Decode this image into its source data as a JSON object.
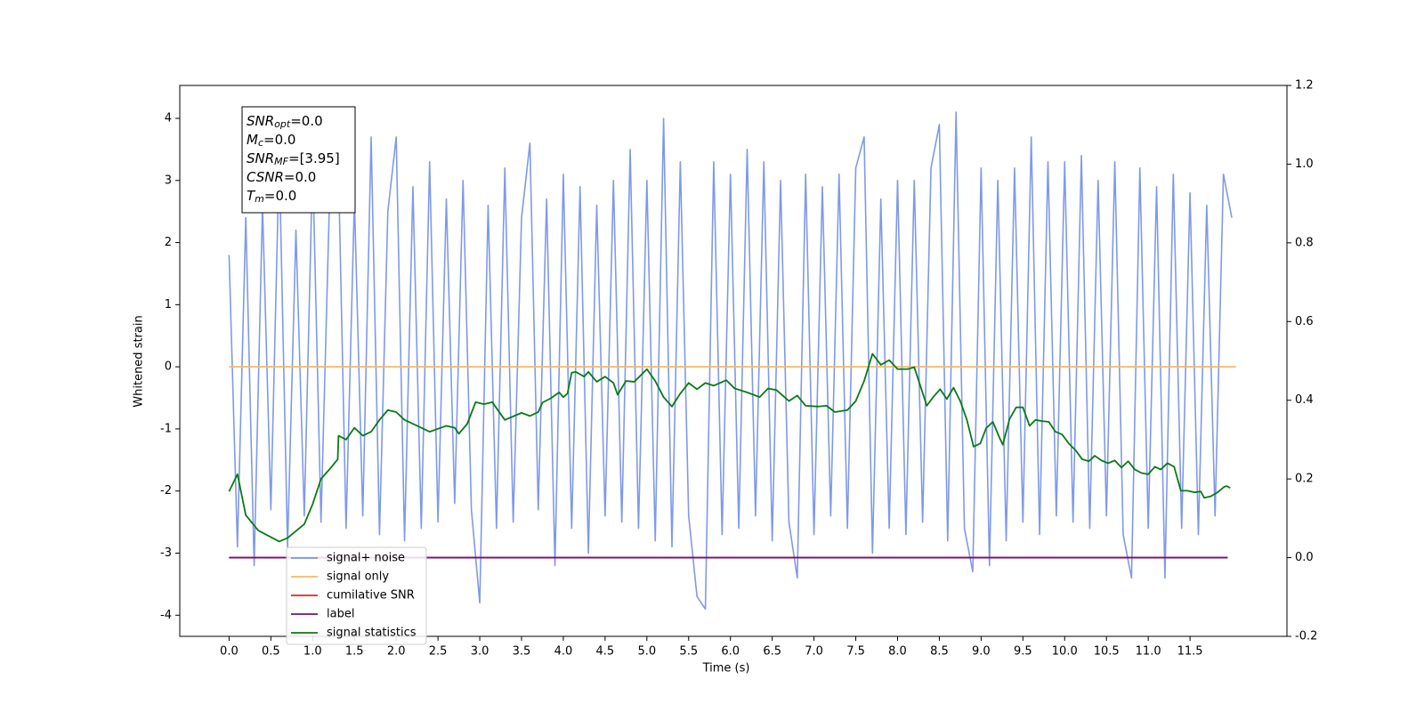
{
  "chart_data": {
    "type": "line",
    "xlabel": "Time (s)",
    "ylabel": "Whitened strain",
    "xlim": [
      -0.59,
      12.66
    ],
    "ylim": [
      -4.34,
      4.53
    ],
    "y2lim": [
      -0.2,
      1.2
    ],
    "xticks": [
      {
        "value": 0,
        "label": "0.0"
      },
      0.5,
      {
        "value": 1,
        "label": "1.0"
      },
      1.5,
      {
        "value": 2,
        "label": "2.0"
      },
      2.5,
      {
        "value": 3,
        "label": "3.0"
      },
      3.5,
      {
        "value": 4,
        "label": "4.0"
      },
      4.5,
      {
        "value": 5,
        "label": "5.0"
      },
      5.5,
      {
        "value": 6,
        "label": "6.0"
      },
      6.5,
      {
        "value": 7,
        "label": "7.0"
      },
      7.5,
      {
        "value": 8,
        "label": "8.0"
      },
      8.5,
      {
        "value": 9,
        "label": "9.0"
      },
      9.5,
      {
        "value": 10,
        "label": "10.0"
      },
      10.5,
      {
        "value": 11,
        "label": "11.0"
      },
      11.5
    ],
    "yticks": [
      -4,
      -3,
      -2,
      -1,
      0,
      1,
      2,
      3,
      4
    ],
    "y2ticks": [
      -0.2,
      {
        "value": 0,
        "label": "0.0"
      },
      0.2,
      0.4,
      0.6,
      0.8,
      {
        "value": 1,
        "label": "1.0"
      },
      1.2
    ],
    "legend": "lower left",
    "annotations": [
      {
        "base": "SNR",
        "sub": "opt",
        "rest": "=0.0"
      },
      {
        "base": "M",
        "sub": "c",
        "rest": "=0.0"
      },
      {
        "base": "SNR",
        "sub": "MF",
        "rest": "=[3.95]"
      },
      {
        "base": "CSNR",
        "sub": "",
        "rest": "=0.0"
      },
      {
        "base": "T",
        "sub": "m",
        "rest": "=0.0"
      }
    ],
    "series": [
      {
        "name": "signal+ noise",
        "color": "#7893e8",
        "axis": "y",
        "x": [
          0,
          0.1,
          0.2,
          0.3,
          0.4,
          0.5,
          0.6,
          0.7,
          0.8,
          0.9,
          1,
          1.1,
          1.2,
          1.3,
          1.4,
          1.5,
          1.6,
          1.7,
          1.8,
          1.9,
          2,
          2.1,
          2.2,
          2.3,
          2.4,
          2.5,
          2.6,
          2.7,
          2.8,
          2.9,
          3,
          3.1,
          3.2,
          3.3,
          3.4,
          3.5,
          3.6,
          3.7,
          3.8,
          3.9,
          4,
          4.1,
          4.2,
          4.3,
          4.4,
          4.5,
          4.6,
          4.7,
          4.8,
          4.9,
          5,
          5.1,
          5.2,
          5.3,
          5.4,
          5.5,
          5.6,
          5.7,
          5.8,
          5.9,
          6,
          6.1,
          6.2,
          6.3,
          6.4,
          6.5,
          6.6,
          6.7,
          6.8,
          6.9,
          7,
          7.1,
          7.2,
          7.3,
          7.4,
          7.5,
          7.6,
          7.7,
          7.8,
          7.9,
          8,
          8.1,
          8.2,
          8.3,
          8.4,
          8.5,
          8.6,
          8.7,
          8.8,
          8.9,
          9,
          9.1,
          9.2,
          9.3,
          9.4,
          9.5,
          9.6,
          9.7,
          9.8,
          9.9,
          10,
          10.1,
          10.2,
          10.3,
          10.4,
          10.5,
          10.6,
          10.7,
          10.8,
          10.9,
          11,
          11.1,
          11.2,
          11.3,
          11.4,
          11.5,
          11.6,
          11.7,
          11.8,
          11.9,
          12
        ],
        "values": [
          1.8,
          -2.9,
          2.4,
          -3.2,
          2.6,
          -2.3,
          3.4,
          -2.9,
          2.2,
          -2.4,
          3.3,
          -2.5,
          2.6,
          3.8,
          -2.6,
          2.7,
          -2.4,
          3.7,
          -2.7,
          2.5,
          3.7,
          -2.8,
          2.9,
          -2.6,
          3.3,
          -2.5,
          2.7,
          -2.2,
          3.0,
          -2.3,
          -3.8,
          2.6,
          -2.6,
          3.2,
          -2.5,
          2.4,
          3.6,
          -2.3,
          2.7,
          -3.2,
          3.1,
          -2.6,
          2.9,
          -3.0,
          2.6,
          -2.4,
          3.0,
          -2.5,
          3.5,
          -2.6,
          3.0,
          -2.8,
          4.0,
          -2.9,
          3.3,
          -2.4,
          -3.7,
          -3.9,
          3.3,
          -2.7,
          3.1,
          -2.6,
          3.5,
          -2.4,
          3.3,
          -2.8,
          3.0,
          -2.5,
          -3.4,
          3.1,
          -2.7,
          2.9,
          -2.4,
          3.1,
          -2.6,
          3.2,
          3.7,
          -3.0,
          2.7,
          -2.6,
          3.0,
          -2.7,
          3.0,
          -2.5,
          3.2,
          3.9,
          -2.8,
          4.1,
          -2.6,
          -3.3,
          3.2,
          -3.2,
          3.0,
          -2.8,
          3.2,
          -2.5,
          3.7,
          -2.7,
          3.3,
          -2.4,
          3.3,
          -2.5,
          3.4,
          -2.6,
          3.0,
          -2.4,
          3.3,
          -2.7,
          -3.4,
          3.2,
          -2.6,
          2.9,
          -3.4,
          3.1,
          -2.6,
          2.8,
          -2.7,
          2.6,
          -2.4,
          3.1,
          2.4
        ]
      },
      {
        "name": "signal only",
        "color": "#f5b969",
        "axis": "y",
        "x": [
          0,
          12.05
        ],
        "values": [
          0,
          0
        ]
      },
      {
        "name": "cumilative SNR",
        "color": "#e8221c",
        "axis": "y2",
        "x": [
          0,
          11.95
        ],
        "values": [
          0,
          0
        ]
      },
      {
        "name": "label",
        "color": "#7a0f7a",
        "axis": "y2",
        "x": [
          0,
          11.95
        ],
        "values": [
          0,
          0
        ]
      },
      {
        "name": "signal statistics",
        "color": "#0a7a14",
        "axis": "y2",
        "x": [
          0,
          0.1,
          0.2,
          0.35,
          0.6,
          0.7,
          0.9,
          1.0,
          1.1,
          1.2,
          1.3,
          1.31,
          1.4,
          1.5,
          1.6,
          1.7,
          1.8,
          1.9,
          2.0,
          2.1,
          2.2,
          2.4,
          2.6,
          2.7,
          2.75,
          2.85,
          2.95,
          3.05,
          3.15,
          3.3,
          3.5,
          3.6,
          3.7,
          3.75,
          3.85,
          3.95,
          4.0,
          4.05,
          4.1,
          4.15,
          4.25,
          4.3,
          4.4,
          4.5,
          4.6,
          4.65,
          4.75,
          4.85,
          5.0,
          5.1,
          5.2,
          5.3,
          5.4,
          5.5,
          5.6,
          5.7,
          5.8,
          5.95,
          6.05,
          6.2,
          6.35,
          6.45,
          6.55,
          6.7,
          6.8,
          6.9,
          7.05,
          7.15,
          7.25,
          7.4,
          7.5,
          7.6,
          7.7,
          7.8,
          7.9,
          8.0,
          8.12,
          8.2,
          8.28,
          8.35,
          8.43,
          8.51,
          8.59,
          8.67,
          8.75,
          8.83,
          8.91,
          8.99,
          9.06,
          9.14,
          9.22,
          9.26,
          9.34,
          9.42,
          9.5,
          9.58,
          9.65,
          9.73,
          9.81,
          9.89,
          9.97,
          10.05,
          10.13,
          10.21,
          10.29,
          10.36,
          10.44,
          10.52,
          10.6,
          10.68,
          10.76,
          10.84,
          10.92,
          11.0,
          11.08,
          11.15,
          11.23,
          11.31,
          11.39,
          11.47,
          11.55,
          11.63,
          11.67,
          11.75,
          11.83,
          11.91,
          11.94,
          11.98
        ],
        "values": [
          0.168,
          0.212,
          0.108,
          0.069,
          0.041,
          0.05,
          0.085,
          0.136,
          0.2,
          0.224,
          0.25,
          0.31,
          0.3,
          0.33,
          0.31,
          0.32,
          0.35,
          0.375,
          0.37,
          0.35,
          0.34,
          0.32,
          0.335,
          0.33,
          0.315,
          0.34,
          0.395,
          0.39,
          0.395,
          0.35,
          0.368,
          0.36,
          0.37,
          0.394,
          0.405,
          0.42,
          0.408,
          0.417,
          0.47,
          0.472,
          0.46,
          0.472,
          0.447,
          0.46,
          0.444,
          0.414,
          0.449,
          0.447,
          0.479,
          0.449,
          0.408,
          0.384,
          0.417,
          0.444,
          0.428,
          0.444,
          0.437,
          0.451,
          0.43,
          0.42,
          0.408,
          0.43,
          0.426,
          0.398,
          0.412,
          0.386,
          0.384,
          0.386,
          0.37,
          0.375,
          0.398,
          0.449,
          0.518,
          0.49,
          0.502,
          0.479,
          0.479,
          0.484,
          0.432,
          0.386,
          0.409,
          0.428,
          0.403,
          0.432,
          0.398,
          0.35,
          0.282,
          0.29,
          0.329,
          0.345,
          0.305,
          0.287,
          0.352,
          0.382,
          0.382,
          0.335,
          0.35,
          0.347,
          0.345,
          0.32,
          0.313,
          0.29,
          0.273,
          0.25,
          0.245,
          0.259,
          0.247,
          0.24,
          0.247,
          0.229,
          0.245,
          0.224,
          0.215,
          0.212,
          0.231,
          0.224,
          0.24,
          0.231,
          0.17,
          0.17,
          0.166,
          0.168,
          0.152,
          0.156,
          0.166,
          0.18,
          0.182,
          0.177
        ]
      }
    ]
  }
}
